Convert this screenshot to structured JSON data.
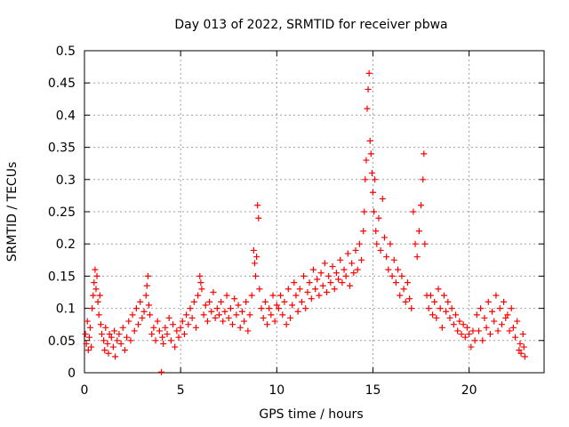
{
  "chart_data": {
    "type": "scatter",
    "title": "Day 013 of 2022, SRMTID for receiver pbwa",
    "xlabel": "GPS time / hours",
    "ylabel": "SRMTID / TECUs",
    "xlim": [
      0,
      23.9
    ],
    "ylim": [
      0,
      0.5
    ],
    "xticks": [
      0,
      5,
      10,
      15,
      20
    ],
    "yticks": [
      0,
      0.05,
      0.1,
      0.15,
      0.2,
      0.25,
      0.3,
      0.35,
      0.4,
      0.45,
      0.5
    ],
    "grid": true,
    "marker": "+",
    "color": "#ff0000",
    "series": [
      {
        "name": "SRMTID",
        "points": [
          [
            0.05,
            0.06
          ],
          [
            0.1,
            0.045
          ],
          [
            0.15,
            0.08
          ],
          [
            0.2,
            0.035
          ],
          [
            0.25,
            0.055
          ],
          [
            0.3,
            0.07
          ],
          [
            0.35,
            0.04
          ],
          [
            0.4,
            0.1
          ],
          [
            0.45,
            0.12
          ],
          [
            0.5,
            0.14
          ],
          [
            0.55,
            0.16
          ],
          [
            0.6,
            0.13
          ],
          [
            0.65,
            0.15
          ],
          [
            0.7,
            0.11
          ],
          [
            0.75,
            0.09
          ],
          [
            0.8,
            0.12
          ],
          [
            0.85,
            0.075
          ],
          [
            0.9,
            0.06
          ],
          [
            1.0,
            0.05
          ],
          [
            1.05,
            0.035
          ],
          [
            1.1,
            0.07
          ],
          [
            1.2,
            0.045
          ],
          [
            1.25,
            0.03
          ],
          [
            1.3,
            0.06
          ],
          [
            1.4,
            0.055
          ],
          [
            1.5,
            0.04
          ],
          [
            1.55,
            0.065
          ],
          [
            1.6,
            0.025
          ],
          [
            1.7,
            0.05
          ],
          [
            1.8,
            0.06
          ],
          [
            1.9,
            0.045
          ],
          [
            2.0,
            0.07
          ],
          [
            2.1,
            0.035
          ],
          [
            2.2,
            0.055
          ],
          [
            2.3,
            0.08
          ],
          [
            2.4,
            0.05
          ],
          [
            2.5,
            0.09
          ],
          [
            2.6,
            0.065
          ],
          [
            2.7,
            0.1
          ],
          [
            2.8,
            0.075
          ],
          [
            2.9,
            0.11
          ],
          [
            3.0,
            0.085
          ],
          [
            3.1,
            0.095
          ],
          [
            3.2,
            0.12
          ],
          [
            3.25,
            0.135
          ],
          [
            3.3,
            0.15
          ],
          [
            3.35,
            0.105
          ],
          [
            3.4,
            0.09
          ],
          [
            3.5,
            0.06
          ],
          [
            3.6,
            0.07
          ],
          [
            3.7,
            0.05
          ],
          [
            3.8,
            0.08
          ],
          [
            3.9,
            0.065
          ],
          [
            4.0,
            0.001
          ],
          [
            4.05,
            0.055
          ],
          [
            4.1,
            0.045
          ],
          [
            4.2,
            0.07
          ],
          [
            4.3,
            0.06
          ],
          [
            4.4,
            0.085
          ],
          [
            4.5,
            0.05
          ],
          [
            4.6,
            0.075
          ],
          [
            4.7,
            0.04
          ],
          [
            4.8,
            0.065
          ],
          [
            4.9,
            0.055
          ],
          [
            5.0,
            0.07
          ],
          [
            5.1,
            0.08
          ],
          [
            5.2,
            0.06
          ],
          [
            5.3,
            0.09
          ],
          [
            5.4,
            0.075
          ],
          [
            5.5,
            0.1
          ],
          [
            5.6,
            0.085
          ],
          [
            5.7,
            0.11
          ],
          [
            5.8,
            0.07
          ],
          [
            5.9,
            0.12
          ],
          [
            6.0,
            0.15
          ],
          [
            6.05,
            0.14
          ],
          [
            6.1,
            0.13
          ],
          [
            6.2,
            0.09
          ],
          [
            6.3,
            0.105
          ],
          [
            6.4,
            0.08
          ],
          [
            6.5,
            0.11
          ],
          [
            6.6,
            0.095
          ],
          [
            6.7,
            0.125
          ],
          [
            6.8,
            0.085
          ],
          [
            6.9,
            0.1
          ],
          [
            7.0,
            0.09
          ],
          [
            7.1,
            0.11
          ],
          [
            7.2,
            0.08
          ],
          [
            7.3,
            0.095
          ],
          [
            7.4,
            0.12
          ],
          [
            7.5,
            0.085
          ],
          [
            7.6,
            0.1
          ],
          [
            7.7,
            0.075
          ],
          [
            7.8,
            0.115
          ],
          [
            7.9,
            0.09
          ],
          [
            8.0,
            0.105
          ],
          [
            8.1,
            0.07
          ],
          [
            8.2,
            0.095
          ],
          [
            8.3,
            0.08
          ],
          [
            8.4,
            0.11
          ],
          [
            8.5,
            0.065
          ],
          [
            8.6,
            0.09
          ],
          [
            8.7,
            0.12
          ],
          [
            8.8,
            0.19
          ],
          [
            8.85,
            0.17
          ],
          [
            8.9,
            0.15
          ],
          [
            8.95,
            0.18
          ],
          [
            9.0,
            0.26
          ],
          [
            9.05,
            0.24
          ],
          [
            9.1,
            0.13
          ],
          [
            9.2,
            0.1
          ],
          [
            9.3,
            0.085
          ],
          [
            9.4,
            0.11
          ],
          [
            9.5,
            0.075
          ],
          [
            9.6,
            0.1
          ],
          [
            9.7,
            0.09
          ],
          [
            9.8,
            0.12
          ],
          [
            9.9,
            0.08
          ],
          [
            10.0,
            0.105
          ],
          [
            10.1,
            0.1
          ],
          [
            10.2,
            0.12
          ],
          [
            10.3,
            0.09
          ],
          [
            10.4,
            0.11
          ],
          [
            10.5,
            0.075
          ],
          [
            10.6,
            0.13
          ],
          [
            10.7,
            0.085
          ],
          [
            10.8,
            0.105
          ],
          [
            10.9,
            0.14
          ],
          [
            11.0,
            0.12
          ],
          [
            11.1,
            0.095
          ],
          [
            11.2,
            0.13
          ],
          [
            11.3,
            0.11
          ],
          [
            11.4,
            0.15
          ],
          [
            11.5,
            0.1
          ],
          [
            11.6,
            0.125
          ],
          [
            11.7,
            0.14
          ],
          [
            11.8,
            0.115
          ],
          [
            11.9,
            0.16
          ],
          [
            12.0,
            0.13
          ],
          [
            12.1,
            0.145
          ],
          [
            12.2,
            0.12
          ],
          [
            12.3,
            0.155
          ],
          [
            12.4,
            0.135
          ],
          [
            12.5,
            0.17
          ],
          [
            12.6,
            0.125
          ],
          [
            12.7,
            0.15
          ],
          [
            12.8,
            0.14
          ],
          [
            12.9,
            0.165
          ],
          [
            13.0,
            0.13
          ],
          [
            13.1,
            0.155
          ],
          [
            13.2,
            0.145
          ],
          [
            13.3,
            0.175
          ],
          [
            13.4,
            0.14
          ],
          [
            13.5,
            0.16
          ],
          [
            13.6,
            0.15
          ],
          [
            13.7,
            0.185
          ],
          [
            13.8,
            0.135
          ],
          [
            13.9,
            0.17
          ],
          [
            14.0,
            0.155
          ],
          [
            14.1,
            0.19
          ],
          [
            14.2,
            0.16
          ],
          [
            14.3,
            0.2
          ],
          [
            14.4,
            0.175
          ],
          [
            14.5,
            0.22
          ],
          [
            14.55,
            0.25
          ],
          [
            14.6,
            0.3
          ],
          [
            14.65,
            0.33
          ],
          [
            14.7,
            0.41
          ],
          [
            14.75,
            0.44
          ],
          [
            14.8,
            0.465
          ],
          [
            14.85,
            0.36
          ],
          [
            14.9,
            0.34
          ],
          [
            14.95,
            0.31
          ],
          [
            15.0,
            0.28
          ],
          [
            15.05,
            0.25
          ],
          [
            15.1,
            0.3
          ],
          [
            15.15,
            0.22
          ],
          [
            15.2,
            0.2
          ],
          [
            15.3,
            0.24
          ],
          [
            15.4,
            0.19
          ],
          [
            15.5,
            0.27
          ],
          [
            15.6,
            0.21
          ],
          [
            15.7,
            0.18
          ],
          [
            15.8,
            0.16
          ],
          [
            15.9,
            0.2
          ],
          [
            16.0,
            0.15
          ],
          [
            16.1,
            0.175
          ],
          [
            16.2,
            0.14
          ],
          [
            16.3,
            0.16
          ],
          [
            16.4,
            0.12
          ],
          [
            16.5,
            0.15
          ],
          [
            16.6,
            0.13
          ],
          [
            16.7,
            0.11
          ],
          [
            16.8,
            0.14
          ],
          [
            16.9,
            0.115
          ],
          [
            17.0,
            0.1
          ],
          [
            17.1,
            0.25
          ],
          [
            17.2,
            0.2
          ],
          [
            17.3,
            0.18
          ],
          [
            17.4,
            0.22
          ],
          [
            17.5,
            0.26
          ],
          [
            17.6,
            0.3
          ],
          [
            17.65,
            0.34
          ],
          [
            17.7,
            0.2
          ],
          [
            17.8,
            0.12
          ],
          [
            17.9,
            0.1
          ],
          [
            18.0,
            0.12
          ],
          [
            18.1,
            0.09
          ],
          [
            18.2,
            0.11
          ],
          [
            18.3,
            0.085
          ],
          [
            18.4,
            0.13
          ],
          [
            18.5,
            0.1
          ],
          [
            18.6,
            0.07
          ],
          [
            18.7,
            0.12
          ],
          [
            18.8,
            0.095
          ],
          [
            18.9,
            0.11
          ],
          [
            19.0,
            0.085
          ],
          [
            19.1,
            0.1
          ],
          [
            19.2,
            0.075
          ],
          [
            19.3,
            0.09
          ],
          [
            19.4,
            0.065
          ],
          [
            19.5,
            0.08
          ],
          [
            19.6,
            0.06
          ],
          [
            19.7,
            0.075
          ],
          [
            19.8,
            0.055
          ],
          [
            19.9,
            0.07
          ],
          [
            20.0,
            0.06
          ],
          [
            20.1,
            0.04
          ],
          [
            20.2,
            0.065
          ],
          [
            20.3,
            0.05
          ],
          [
            20.4,
            0.09
          ],
          [
            20.5,
            0.065
          ],
          [
            20.6,
            0.1
          ],
          [
            20.7,
            0.05
          ],
          [
            20.8,
            0.085
          ],
          [
            20.9,
            0.07
          ],
          [
            21.0,
            0.11
          ],
          [
            21.1,
            0.06
          ],
          [
            21.2,
            0.095
          ],
          [
            21.3,
            0.08
          ],
          [
            21.4,
            0.12
          ],
          [
            21.5,
            0.065
          ],
          [
            21.6,
            0.1
          ],
          [
            21.7,
            0.075
          ],
          [
            21.8,
            0.11
          ],
          [
            21.9,
            0.085
          ],
          [
            22.0,
            0.09
          ],
          [
            22.1,
            0.065
          ],
          [
            22.2,
            0.1
          ],
          [
            22.3,
            0.07
          ],
          [
            22.4,
            0.055
          ],
          [
            22.5,
            0.08
          ],
          [
            22.6,
            0.035
          ],
          [
            22.65,
            0.045
          ],
          [
            22.7,
            0.03
          ],
          [
            22.8,
            0.06
          ],
          [
            22.85,
            0.04
          ],
          [
            22.9,
            0.025
          ]
        ]
      }
    ]
  }
}
